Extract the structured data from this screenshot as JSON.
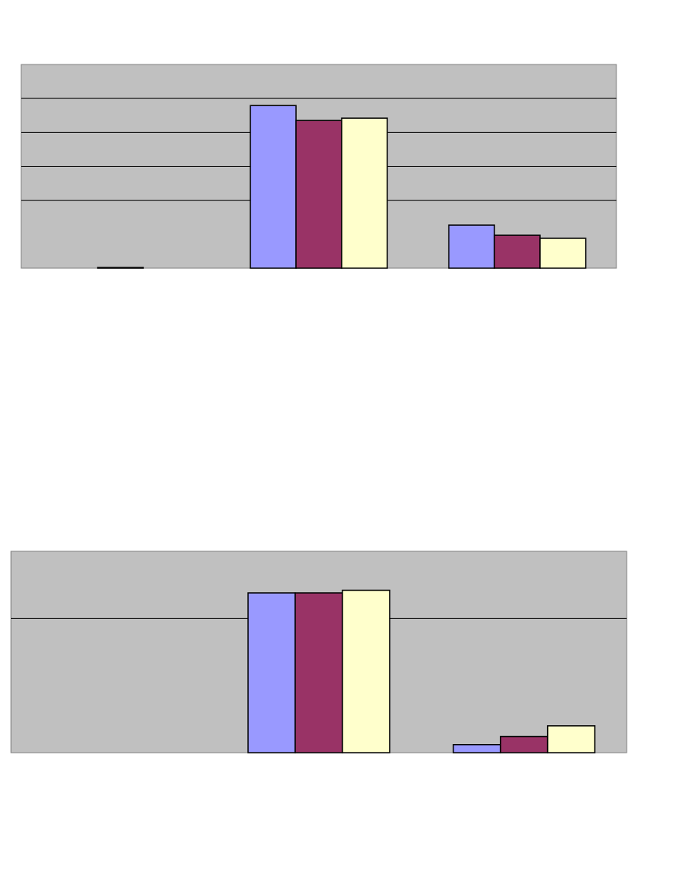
{
  "chart_data": [
    {
      "type": "bar",
      "categories": [
        null,
        null,
        null
      ],
      "series": [
        {
          "color": "#9999ff",
          "values": [
            0,
            4.79,
            1.27
          ]
        },
        {
          "color": "#993366",
          "values": [
            0.02,
            4.35,
            0.97
          ]
        },
        {
          "color": "#ffffcc",
          "values": [
            0,
            4.42,
            0.88
          ]
        }
      ],
      "ylim": [
        0,
        6
      ],
      "yticks": [
        2,
        3,
        4,
        5
      ],
      "grid": true
    },
    {
      "type": "bar",
      "categories": [
        null,
        null,
        null
      ],
      "series": [
        {
          "color": "#9999ff",
          "values": [
            0,
            1.19,
            0.06
          ]
        },
        {
          "color": "#993366",
          "values": [
            0,
            1.19,
            0.12
          ]
        },
        {
          "color": "#ffffcc",
          "values": [
            0,
            1.21,
            0.2
          ]
        }
      ],
      "ylim": [
        0,
        1.5
      ],
      "yticks": [
        1
      ],
      "grid": true
    }
  ]
}
